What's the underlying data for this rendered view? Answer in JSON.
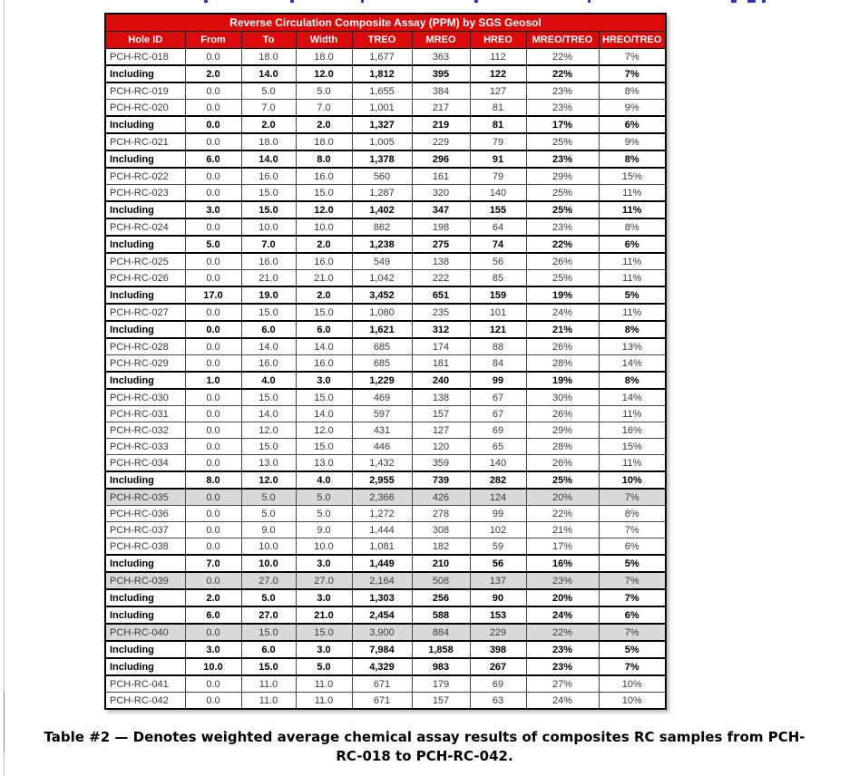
{
  "page": {
    "caption_line1": "Table #2 — Denotes weighted average chemical assay results of composites RC samples from PCH-",
    "caption_line2": "RC-018 to PCH-RC-042."
  },
  "table": {
    "title": "Reverse Circulation Composite Assay (PPM) by SGS Geosol",
    "columns": [
      "Hole ID",
      "From",
      "To",
      "Width",
      "TREO",
      "MREO",
      "HREO",
      "MREO/TREO",
      "HREO/TREO"
    ],
    "colors": {
      "header_bg": "#dc0b0b",
      "header_text": "#ffffff",
      "gray_row_bg": "#d9d9d9"
    },
    "rows": [
      {
        "cells": [
          "PCH-RC-018",
          "0.0",
          "18.0",
          "18.0",
          "1,677",
          "363",
          "112",
          "22%",
          "7%"
        ],
        "bold": false,
        "gray": false
      },
      {
        "cells": [
          "Including",
          "2.0",
          "14.0",
          "12.0",
          "1,812",
          "395",
          "122",
          "22%",
          "7%"
        ],
        "bold": true,
        "gray": false
      },
      {
        "cells": [
          "PCH-RC-019",
          "0.0",
          "5.0",
          "5.0",
          "1,655",
          "384",
          "127",
          "23%",
          "8%"
        ],
        "bold": false,
        "gray": false
      },
      {
        "cells": [
          "PCH-RC-020",
          "0.0",
          "7.0",
          "7.0",
          "1,001",
          "217",
          "81",
          "23%",
          "9%"
        ],
        "bold": false,
        "gray": false
      },
      {
        "cells": [
          "Including",
          "0.0",
          "2.0",
          "2.0",
          "1,327",
          "219",
          "81",
          "17%",
          "6%"
        ],
        "bold": true,
        "gray": false
      },
      {
        "cells": [
          "PCH-RC-021",
          "0.0",
          "18.0",
          "18.0",
          "1,005",
          "229",
          "79",
          "25%",
          "9%"
        ],
        "bold": false,
        "gray": false
      },
      {
        "cells": [
          "Including",
          "6.0",
          "14.0",
          "8.0",
          "1,378",
          "296",
          "91",
          "23%",
          "8%"
        ],
        "bold": true,
        "gray": false
      },
      {
        "cells": [
          "PCH-RC-022",
          "0.0",
          "16.0",
          "16.0",
          "560",
          "161",
          "79",
          "29%",
          "15%"
        ],
        "bold": false,
        "gray": false
      },
      {
        "cells": [
          "PCH-RC-023",
          "0.0",
          "15.0",
          "15.0",
          "1,287",
          "320",
          "140",
          "25%",
          "11%"
        ],
        "bold": false,
        "gray": false
      },
      {
        "cells": [
          "Including",
          "3.0",
          "15.0",
          "12.0",
          "1,402",
          "347",
          "155",
          "25%",
          "11%"
        ],
        "bold": true,
        "gray": false
      },
      {
        "cells": [
          "PCH-RC-024",
          "0.0",
          "10.0",
          "10.0",
          "862",
          "198",
          "64",
          "23%",
          "8%"
        ],
        "bold": false,
        "gray": false
      },
      {
        "cells": [
          "Including",
          "5.0",
          "7.0",
          "2.0",
          "1,238",
          "275",
          "74",
          "22%",
          "6%"
        ],
        "bold": true,
        "gray": false
      },
      {
        "cells": [
          "PCH-RC-025",
          "0.0",
          "16.0",
          "16.0",
          "549",
          "138",
          "56",
          "26%",
          "11%"
        ],
        "bold": false,
        "gray": false
      },
      {
        "cells": [
          "PCH-RC-026",
          "0.0",
          "21.0",
          "21.0",
          "1,042",
          "222",
          "85",
          "25%",
          "11%"
        ],
        "bold": false,
        "gray": false
      },
      {
        "cells": [
          "Including",
          "17.0",
          "19.0",
          "2.0",
          "3,452",
          "651",
          "159",
          "19%",
          "5%"
        ],
        "bold": true,
        "gray": false
      },
      {
        "cells": [
          "PCH-RC-027",
          "0.0",
          "15.0",
          "15.0",
          "1,080",
          "235",
          "101",
          "24%",
          "11%"
        ],
        "bold": false,
        "gray": false
      },
      {
        "cells": [
          "Including",
          "0.0",
          "6.0",
          "6.0",
          "1,621",
          "312",
          "121",
          "21%",
          "8%"
        ],
        "bold": true,
        "gray": false
      },
      {
        "cells": [
          "PCH-RC-028",
          "0.0",
          "14.0",
          "14.0",
          "685",
          "174",
          "88",
          "26%",
          "13%"
        ],
        "bold": false,
        "gray": false
      },
      {
        "cells": [
          "PCH-RC-029",
          "0.0",
          "16.0",
          "16.0",
          "685",
          "181",
          "84",
          "28%",
          "14%"
        ],
        "bold": false,
        "gray": false
      },
      {
        "cells": [
          "Including",
          "1.0",
          "4.0",
          "3.0",
          "1,229",
          "240",
          "99",
          "19%",
          "8%"
        ],
        "bold": true,
        "gray": false
      },
      {
        "cells": [
          "PCH-RC-030",
          "0.0",
          "15.0",
          "15.0",
          "469",
          "138",
          "67",
          "30%",
          "14%"
        ],
        "bold": false,
        "gray": false
      },
      {
        "cells": [
          "PCH-RC-031",
          "0.0",
          "14.0",
          "14.0",
          "597",
          "157",
          "67",
          "26%",
          "11%"
        ],
        "bold": false,
        "gray": false
      },
      {
        "cells": [
          "PCH-RC-032",
          "0.0",
          "12.0",
          "12.0",
          "431",
          "127",
          "69",
          "29%",
          "16%"
        ],
        "bold": false,
        "gray": false
      },
      {
        "cells": [
          "PCH-RC-033",
          "0.0",
          "15.0",
          "15.0",
          "446",
          "120",
          "65",
          "28%",
          "15%"
        ],
        "bold": false,
        "gray": false
      },
      {
        "cells": [
          "PCH-RC-034",
          "0.0",
          "13.0",
          "13.0",
          "1,432",
          "359",
          "140",
          "26%",
          "11%"
        ],
        "bold": false,
        "gray": false
      },
      {
        "cells": [
          "Including",
          "8.0",
          "12.0",
          "4.0",
          "2,955",
          "739",
          "282",
          "25%",
          "10%"
        ],
        "bold": true,
        "gray": false
      },
      {
        "cells": [
          "PCH-RC-035",
          "0.0",
          "5.0",
          "5.0",
          "2,366",
          "426",
          "124",
          "20%",
          "7%"
        ],
        "bold": false,
        "gray": true
      },
      {
        "cells": [
          "PCH-RC-036",
          "0.0",
          "5.0",
          "5.0",
          "1,272",
          "278",
          "99",
          "22%",
          "8%"
        ],
        "bold": false,
        "gray": false
      },
      {
        "cells": [
          "PCH-RC-037",
          "0.0",
          "9.0",
          "9.0",
          "1,444",
          "308",
          "102",
          "21%",
          "7%"
        ],
        "bold": false,
        "gray": false
      },
      {
        "cells": [
          "PCH-RC-038",
          "0.0",
          "10.0",
          "10.0",
          "1,081",
          "182",
          "59",
          "17%",
          "6%"
        ],
        "bold": false,
        "gray": false
      },
      {
        "cells": [
          "Including",
          "7.0",
          "10.0",
          "3.0",
          "1,449",
          "210",
          "56",
          "16%",
          "5%"
        ],
        "bold": true,
        "gray": false
      },
      {
        "cells": [
          "PCH-RC-039",
          "0.0",
          "27.0",
          "27.0",
          "2,164",
          "508",
          "137",
          "23%",
          "7%"
        ],
        "bold": false,
        "gray": true
      },
      {
        "cells": [
          "Including",
          "2.0",
          "5.0",
          "3.0",
          "1,303",
          "256",
          "90",
          "20%",
          "7%"
        ],
        "bold": true,
        "gray": false
      },
      {
        "cells": [
          "Including",
          "6.0",
          "27.0",
          "21.0",
          "2,454",
          "588",
          "153",
          "24%",
          "6%"
        ],
        "bold": true,
        "gray": false
      },
      {
        "cells": [
          "PCH-RC-040",
          "0.0",
          "15.0",
          "15.0",
          "3,900",
          "884",
          "229",
          "22%",
          "7%"
        ],
        "bold": false,
        "gray": true
      },
      {
        "cells": [
          "Including",
          "3.0",
          "6.0",
          "3.0",
          "7,984",
          "1,858",
          "398",
          "23%",
          "5%"
        ],
        "bold": true,
        "gray": false
      },
      {
        "cells": [
          "Including",
          "10.0",
          "15.0",
          "5.0",
          "4,329",
          "983",
          "267",
          "23%",
          "7%"
        ],
        "bold": true,
        "gray": false
      },
      {
        "cells": [
          "PCH-RC-041",
          "0.0",
          "11.0",
          "11.0",
          "671",
          "179",
          "69",
          "27%",
          "10%"
        ],
        "bold": false,
        "gray": false
      },
      {
        "cells": [
          "PCH-RC-042",
          "0.0",
          "11.0",
          "11.0",
          "671",
          "157",
          "63",
          "24%",
          "10%"
        ],
        "bold": false,
        "gray": false
      }
    ]
  }
}
